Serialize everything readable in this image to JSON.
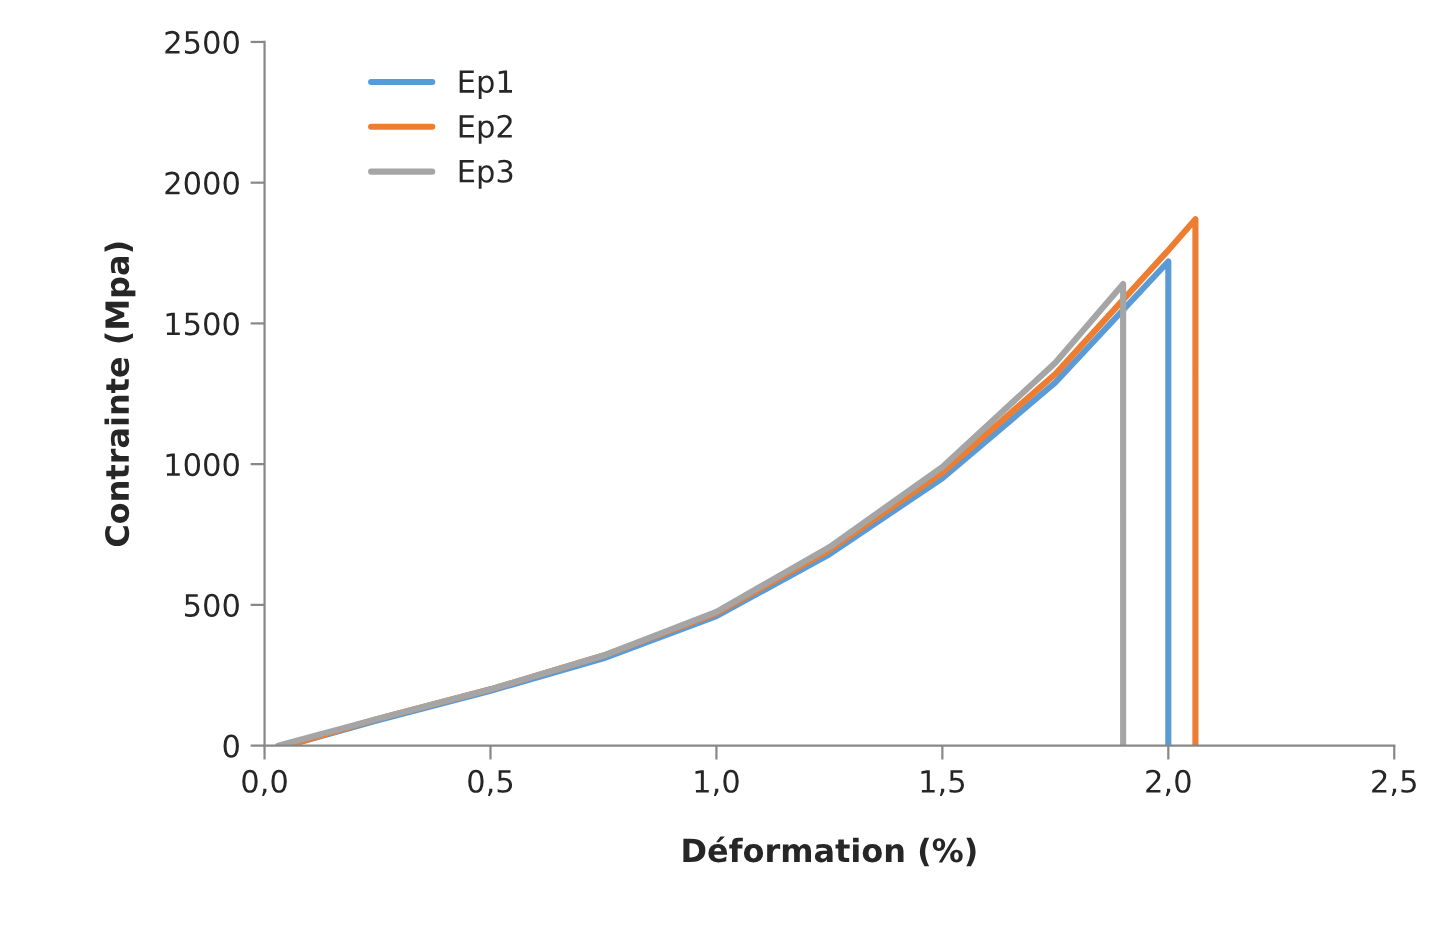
{
  "chart_data": {
    "type": "line",
    "xlabel": "Déformation (%)",
    "ylabel": "Contrainte (Mpa)",
    "xlim": [
      0,
      2.5
    ],
    "xticks": [
      {
        "value": 0,
        "label": "0,0"
      },
      {
        "value": 0.5,
        "label": "0,5"
      },
      {
        "value": 1.0,
        "label": "1,0"
      },
      {
        "value": 1.5,
        "label": "1,5"
      },
      {
        "value": 2.0,
        "label": "2,0"
      },
      {
        "value": 2.5,
        "label": "2,5"
      }
    ],
    "ylim": [
      0,
      2500
    ],
    "yticks": [
      0,
      500,
      1000,
      1500,
      2000,
      2500
    ],
    "grid": false,
    "legend": "top left",
    "marker": "none",
    "line_style": "solid",
    "series": [
      {
        "name": "Ep1",
        "color": "#5b9bd5",
        "x": [
          0.05,
          0.25,
          0.5,
          0.75,
          1.0,
          1.25,
          1.5,
          1.75,
          2.0,
          2.0
        ],
        "values": [
          0,
          90,
          195,
          310,
          460,
          680,
          950,
          1290,
          1720,
          0
        ]
      },
      {
        "name": "Ep2",
        "color": "#ed7d31",
        "x": [
          0.05,
          0.25,
          0.5,
          0.75,
          1.0,
          1.25,
          1.5,
          1.75,
          2.0,
          2.06,
          2.06
        ],
        "values": [
          0,
          95,
          200,
          320,
          470,
          695,
          970,
          1320,
          1760,
          1870,
          0
        ]
      },
      {
        "name": "Ep3",
        "color": "#a5a5a5",
        "x": [
          0.03,
          0.25,
          0.5,
          0.75,
          1.0,
          1.25,
          1.5,
          1.75,
          1.9,
          1.9
        ],
        "values": [
          0,
          95,
          200,
          320,
          475,
          705,
          990,
          1360,
          1640,
          0
        ]
      }
    ]
  }
}
